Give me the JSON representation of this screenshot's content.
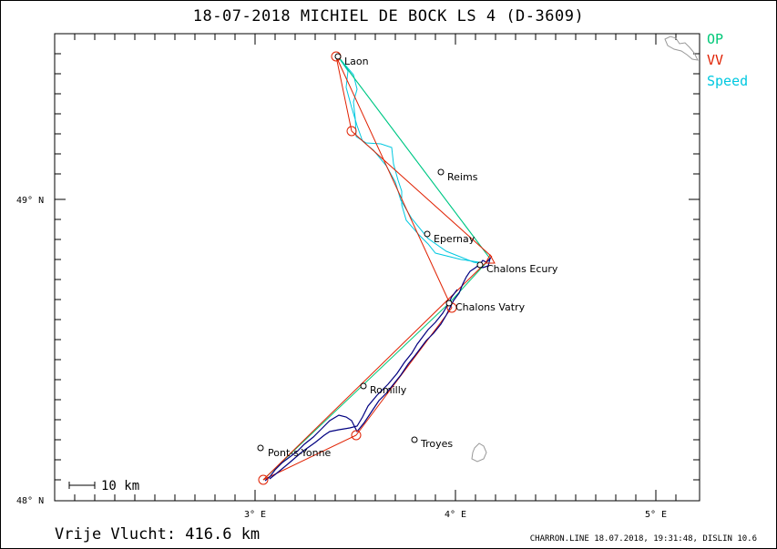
{
  "title": "18-07-2018   MICHIEL DE BOCK   LS 4 (D-3609)",
  "legend": {
    "op": "OP",
    "vv": "VV",
    "speed": "Speed"
  },
  "colors": {
    "op": "#00c878",
    "vv": "#e02000",
    "speed": "#00c8e0",
    "track": "#000080"
  },
  "axes": {
    "x_ticks": [
      "3° E",
      "4° E",
      "5° E"
    ],
    "y_ticks": [
      "49° N",
      "48° N"
    ]
  },
  "scale_bar": "10 km",
  "towns": [
    {
      "name": "Laon"
    },
    {
      "name": "Reims"
    },
    {
      "name": "Epernay"
    },
    {
      "name": "Chalons Ecury"
    },
    {
      "name": "Chalons Vatry"
    },
    {
      "name": "Romilly"
    },
    {
      "name": "Troyes"
    },
    {
      "name": "Pont-s-Yonne"
    }
  ],
  "distance": "Vrije Vlucht:  416.6 km",
  "footer": "CHARRON.LINE 18.07.2018, 19:31:48, DISLIN 10.6"
}
